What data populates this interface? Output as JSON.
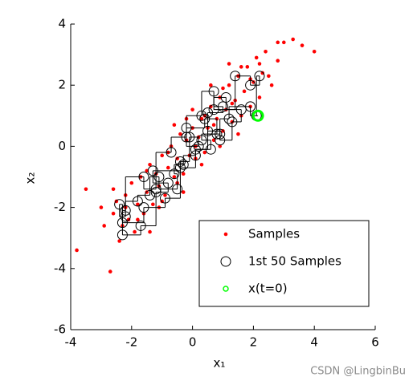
{
  "chart_data": {
    "type": "scatter",
    "xlabel": "x₁",
    "ylabel": "x₂",
    "xlim": [
      -4,
      6
    ],
    "ylim": [
      -6,
      4
    ],
    "xticks": [
      -4,
      -2,
      0,
      2,
      4,
      6
    ],
    "yticks": [
      -6,
      -4,
      -2,
      0,
      2,
      4
    ],
    "legend": "southeast",
    "series": [
      {
        "name": "Samples",
        "color": "#ff0000",
        "marker": "dot",
        "x": [
          -3.8,
          -3.5,
          -3.0,
          -2.9,
          -2.7,
          -2.6,
          -2.5,
          -2.4,
          -2.3,
          -2.2,
          -2.1,
          -2.0,
          -1.9,
          -1.8,
          -1.7,
          -1.6,
          -1.5,
          -1.4,
          -1.3,
          -1.2,
          -1.1,
          -1.0,
          -0.9,
          -0.8,
          -0.7,
          -0.6,
          -0.5,
          -0.4,
          -0.3,
          -0.2,
          -0.1,
          0.0,
          0.1,
          0.2,
          0.3,
          0.4,
          0.5,
          0.6,
          0.7,
          0.8,
          0.9,
          1.0,
          1.1,
          1.2,
          1.3,
          1.4,
          1.5,
          1.6,
          1.7,
          1.8,
          1.9,
          2.0,
          2.1,
          2.2,
          2.3,
          2.4,
          2.6,
          2.8,
          3.0,
          3.3,
          3.6,
          4.0,
          -2.6,
          -2.2,
          -1.8,
          -1.5,
          -1.1,
          -0.8,
          -0.5,
          -0.2,
          0.1,
          0.4,
          0.7,
          1.0,
          1.3,
          1.6,
          1.9,
          2.2,
          2.5,
          2.8,
          -1.0,
          -0.3,
          0.3,
          0.9,
          1.5,
          0.0,
          -0.6,
          0.6,
          1.2,
          -1.4
        ],
        "y": [
          -3.4,
          -1.4,
          -2.0,
          -2.6,
          -4.1,
          -2.2,
          -1.8,
          -3.1,
          -2.6,
          -1.6,
          -2.4,
          -1.2,
          -2.8,
          -1.9,
          -1.0,
          -2.2,
          -1.5,
          -0.6,
          -1.9,
          -0.9,
          -1.3,
          -0.3,
          -1.6,
          -0.7,
          0.0,
          -1.0,
          -0.4,
          0.4,
          -0.9,
          0.2,
          -0.3,
          0.6,
          -0.4,
          0.3,
          0.9,
          -0.2,
          0.6,
          1.3,
          0.2,
          0.9,
          1.6,
          0.5,
          1.2,
          2.0,
          0.8,
          1.5,
          2.3,
          1.0,
          1.8,
          2.6,
          1.3,
          2.1,
          2.9,
          1.6,
          2.4,
          3.1,
          2.0,
          2.8,
          3.4,
          3.5,
          3.3,
          3.1,
          -1.4,
          -2.0,
          -2.4,
          -0.8,
          -2.0,
          -0.2,
          -1.2,
          0.9,
          0.0,
          1.0,
          0.7,
          1.9,
          1.4,
          2.6,
          2.2,
          2.7,
          2.3,
          3.4,
          -1.8,
          -1.5,
          -0.6,
          0.0,
          0.4,
          1.2,
          0.7,
          2.0,
          2.7,
          -2.8
        ]
      },
      {
        "name": "1st 50 Samples",
        "color": "#000000",
        "marker": "open-circle",
        "line": "steps",
        "x": [
          2.15,
          1.9,
          1.2,
          0.9,
          0.3,
          0.6,
          0.1,
          -0.3,
          -0.6,
          -0.5,
          -1.1,
          -1.4,
          -1.8,
          -2.2,
          -2.4,
          -2.3,
          -1.7,
          -1.2,
          -0.8,
          -1.3,
          -0.4,
          -0.1,
          0.2,
          -0.2,
          0.4,
          0.8,
          0.5,
          1.0,
          0.7,
          0.3,
          -0.2,
          -0.7,
          -1.2,
          -1.6,
          -2.2,
          -2.3,
          -1.6,
          -0.9,
          -0.4,
          0.1,
          0.5,
          0.9,
          1.3,
          1.6,
          1.1,
          0.7,
          1.4,
          1.9,
          2.2,
          2.1
        ],
        "y": [
          1.0,
          1.3,
          0.9,
          0.4,
          0.2,
          -0.1,
          -0.3,
          -0.6,
          -0.9,
          -1.4,
          -1.0,
          -1.6,
          -1.8,
          -2.3,
          -1.9,
          -2.9,
          -2.6,
          -1.5,
          -1.2,
          -0.8,
          -0.5,
          0.3,
          0.0,
          0.6,
          0.9,
          0.4,
          1.1,
          1.3,
          1.8,
          1.0,
          0.3,
          -0.2,
          -1.4,
          -1.0,
          -2.1,
          -2.5,
          -2.0,
          -1.7,
          -0.7,
          -0.1,
          0.5,
          0.2,
          0.8,
          1.2,
          1.6,
          1.2,
          2.3,
          2.0,
          2.3,
          1.0
        ]
      },
      {
        "name": "x(t=0)",
        "color": "#00ff00",
        "marker": "open-circle",
        "x": [
          2.15
        ],
        "y": [
          1.0
        ]
      }
    ],
    "watermark": "CSDN @LingbinBu"
  }
}
